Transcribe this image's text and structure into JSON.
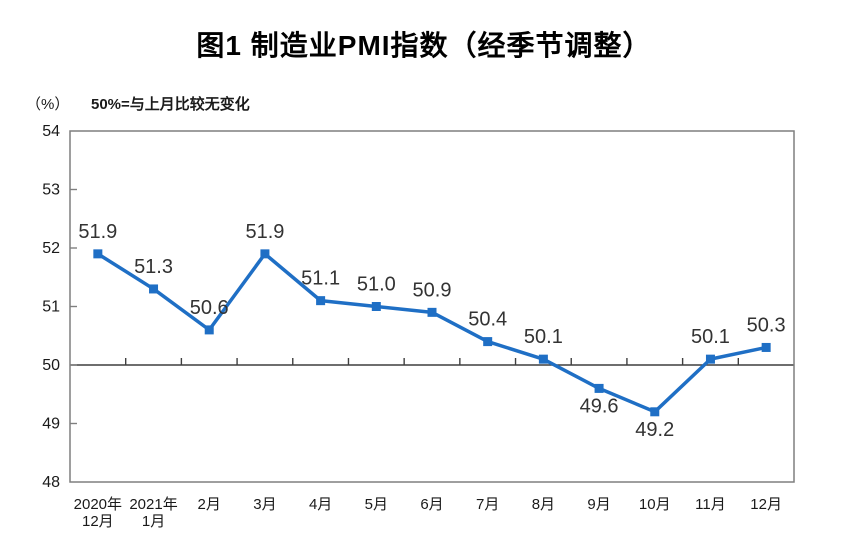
{
  "page": {
    "title": "图1 制造业PMI指数（经季节调整）",
    "y_unit_label": "（%）",
    "reference_note": "50%=与上月比较无变化"
  },
  "colors": {
    "series_line": "#1F6FC5",
    "plot_border": "#7F7F7F",
    "reference_line": "#3F3F3F",
    "axis_text": "#1a1a1a",
    "data_label_text": "#333333",
    "background": "#ffffff"
  },
  "chart_data": {
    "type": "line",
    "title": "图1 制造业PMI指数（经季节调整）",
    "ylabel": "（%）",
    "reference_note": "50%=与上月比较无变化",
    "categories": [
      "2020年\n12月",
      "2021年\n1月",
      "2月",
      "3月",
      "4月",
      "5月",
      "6月",
      "7月",
      "8月",
      "9月",
      "10月",
      "11月",
      "12月"
    ],
    "values": [
      51.9,
      51.3,
      50.6,
      51.9,
      51.1,
      51.0,
      50.9,
      50.4,
      50.1,
      49.6,
      49.2,
      50.1,
      50.3
    ],
    "data_labels": [
      "51.9",
      "51.3",
      "50.6",
      "51.9",
      "51.1",
      "51.0",
      "50.9",
      "50.4",
      "50.1",
      "49.6",
      "49.2",
      "50.1",
      "50.3"
    ],
    "label_positions": [
      "above",
      "above",
      "above",
      "above",
      "above",
      "above",
      "above",
      "above",
      "above",
      "below",
      "below",
      "above",
      "above"
    ],
    "ylim": [
      48,
      54
    ],
    "y_ticks": [
      48,
      49,
      50,
      51,
      52,
      53,
      54
    ],
    "reference_line": 50,
    "marker": "square",
    "grid": false,
    "legend": "none"
  }
}
